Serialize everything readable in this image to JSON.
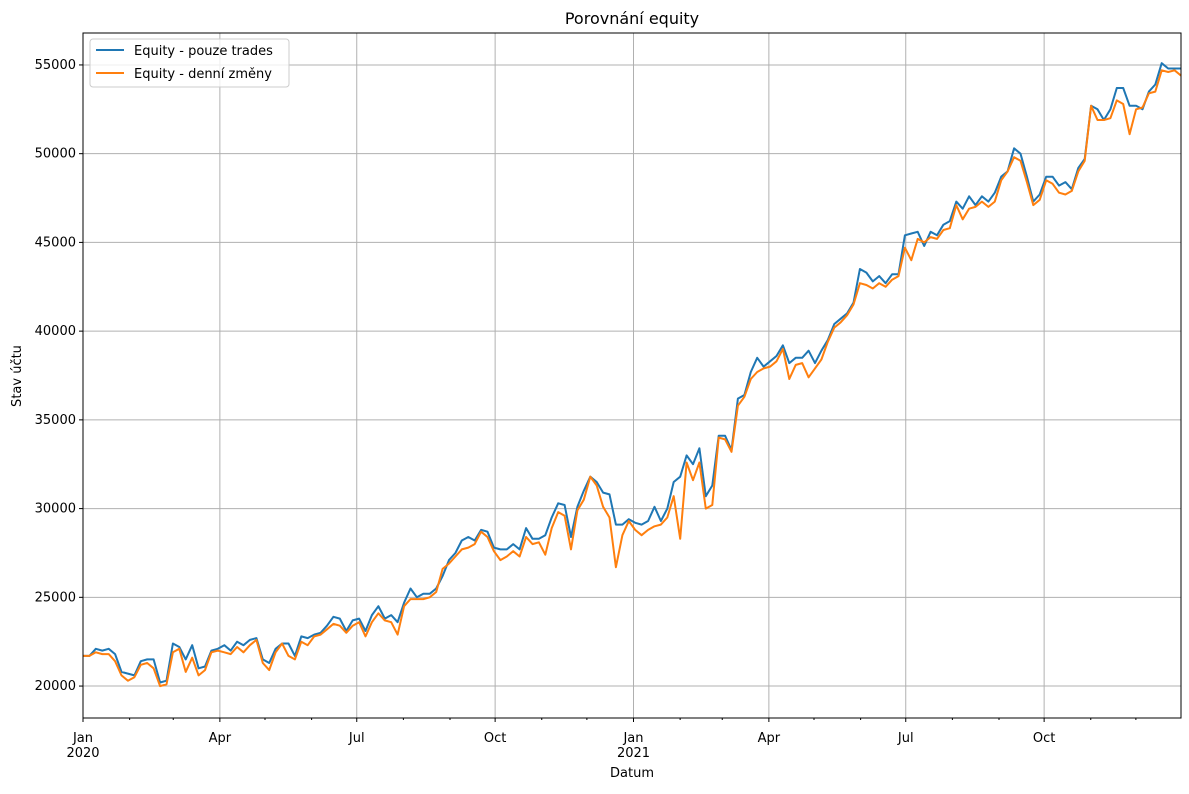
{
  "chart_data": {
    "type": "line",
    "title": "Porovnání equity",
    "xlabel": "Datum",
    "ylabel": "Stav účtu",
    "ylim": [
      18200,
      56800
    ],
    "xlim": [
      "2020-01-01",
      "2021-12-31"
    ],
    "grid": true,
    "legend_placement": "top-left",
    "yticks": [
      20000,
      25000,
      30000,
      35000,
      40000,
      45000,
      50000,
      55000
    ],
    "xticks": [
      {
        "day": 0,
        "label": "Jan",
        "label2": "2020"
      },
      {
        "day": 91,
        "label": "Apr"
      },
      {
        "day": 182,
        "label": "Jul"
      },
      {
        "day": 274,
        "label": "Oct"
      },
      {
        "day": 366,
        "label": "Jan",
        "label2": "2021"
      },
      {
        "day": 456,
        "label": "Apr"
      },
      {
        "day": 547,
        "label": "Jul"
      },
      {
        "day": 639,
        "label": "Oct"
      }
    ],
    "minor_tick_days": [
      31,
      60,
      121,
      152,
      213,
      244,
      305,
      335,
      397,
      425,
      486,
      517,
      578,
      609,
      670,
      700
    ],
    "series": [
      {
        "name": "Equity - pouze trades",
        "color": "#1f77b4",
        "values": [
          21700,
          21700,
          22100,
          22000,
          22100,
          21800,
          20800,
          20700,
          20600,
          21400,
          21500,
          21500,
          20200,
          20300,
          22400,
          22200,
          21500,
          22300,
          21000,
          21100,
          22000,
          22100,
          22300,
          22000,
          22500,
          22300,
          22600,
          22700,
          21500,
          21300,
          22100,
          22400,
          22400,
          21700,
          22800,
          22700,
          22900,
          23000,
          23400,
          23900,
          23800,
          23100,
          23700,
          23800,
          23100,
          24000,
          24500,
          23800,
          24000,
          23600,
          24700,
          25500,
          25000,
          25200,
          25200,
          25500,
          26200,
          27100,
          27500,
          28200,
          28400,
          28200,
          28800,
          28700,
          27800,
          27700,
          27700,
          28000,
          27700,
          28900,
          28300,
          28300,
          28500,
          29500,
          30300,
          30200,
          28400,
          30100,
          31000,
          31800,
          31500,
          30900,
          30800,
          29100,
          29100,
          29400,
          29200,
          29100,
          29300,
          30100,
          29300,
          30000,
          31500,
          31800,
          33000,
          32500,
          33400,
          30700,
          31300,
          34100,
          34100,
          33300,
          36200,
          36400,
          37700,
          38500,
          38000,
          38300,
          38600,
          39200,
          38200,
          38500,
          38500,
          38900,
          38200,
          38900,
          39500,
          40400,
          40700,
          41000,
          41600,
          43500,
          43300,
          42800,
          43100,
          42700,
          43200,
          43200,
          45400,
          45500,
          45600,
          44800,
          45600,
          45400,
          46000,
          46200,
          47300,
          46900,
          47600,
          47100,
          47600,
          47300,
          47800,
          48700,
          49000,
          50300,
          50000,
          48700,
          47300,
          47700,
          48700,
          48700,
          48200,
          48400,
          48000,
          49200,
          49700,
          52700,
          52500,
          51900,
          52500,
          53700,
          53700,
          52700,
          52700,
          52500,
          53500,
          53900,
          55100,
          54800,
          54800,
          54800
        ]
      },
      {
        "name": "Equity - denní změny",
        "color": "#ff7f0e",
        "values": [
          21700,
          21700,
          21900,
          21800,
          21800,
          21400,
          20600,
          20300,
          20500,
          21200,
          21300,
          21000,
          20000,
          20100,
          21900,
          22100,
          20800,
          21600,
          20600,
          20900,
          21900,
          22000,
          21900,
          21800,
          22200,
          21900,
          22300,
          22600,
          21300,
          20900,
          21900,
          22400,
          21700,
          21500,
          22500,
          22300,
          22800,
          22900,
          23200,
          23500,
          23400,
          23000,
          23400,
          23600,
          22800,
          23600,
          24100,
          23700,
          23600,
          22900,
          24500,
          24900,
          24900,
          24900,
          25000,
          25300,
          26600,
          26900,
          27300,
          27700,
          27800,
          28000,
          28700,
          28400,
          27600,
          27100,
          27300,
          27600,
          27300,
          28400,
          28000,
          28100,
          27400,
          28900,
          29800,
          29600,
          27700,
          29900,
          30500,
          31800,
          31300,
          30100,
          29500,
          26700,
          28500,
          29300,
          28800,
          28500,
          28800,
          29000,
          29100,
          29500,
          30700,
          28300,
          32600,
          31600,
          32600,
          30000,
          30200,
          34000,
          33900,
          33200,
          35800,
          36300,
          37300,
          37700,
          37900,
          38000,
          38300,
          39000,
          37300,
          38100,
          38200,
          37400,
          37900,
          38400,
          39400,
          40200,
          40500,
          40900,
          41500,
          42700,
          42600,
          42400,
          42700,
          42500,
          42900,
          43100,
          44700,
          44000,
          45200,
          45000,
          45300,
          45200,
          45700,
          45800,
          47100,
          46300,
          46900,
          47000,
          47300,
          47000,
          47300,
          48500,
          49000,
          49800,
          49600,
          48400,
          47100,
          47400,
          48500,
          48300,
          47800,
          47700,
          47900,
          49000,
          49600,
          52700,
          51900,
          51900,
          52000,
          53000,
          52800,
          51100,
          52500,
          52600,
          53400,
          53500,
          54700,
          54600,
          54700,
          54400
        ]
      }
    ]
  }
}
